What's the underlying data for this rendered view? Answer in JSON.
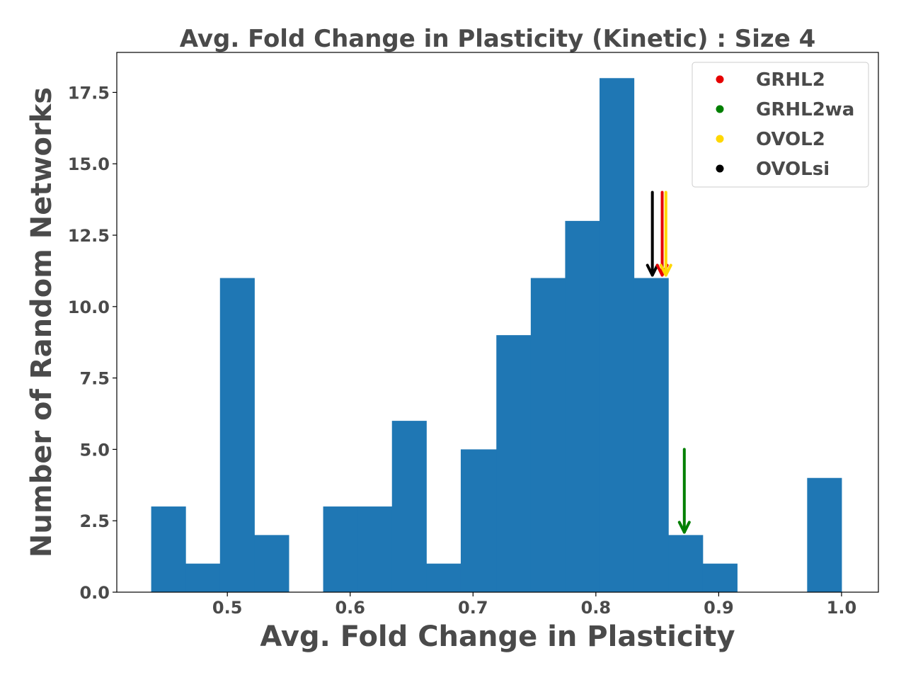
{
  "chart_data": {
    "type": "bar",
    "title": "Avg. Fold Change in Plasticity (Kinetic) : Size 4",
    "xlabel": "Avg. Fold Change in Plasticity",
    "ylabel": "Number of Random Networks",
    "xlim": [
      0.41,
      1.03
    ],
    "ylim": [
      0,
      18.9
    ],
    "grid": false,
    "bar_color": "#1f77b4",
    "bins": [
      {
        "x0": 0.438,
        "x1": 0.466,
        "count": 3
      },
      {
        "x0": 0.466,
        "x1": 0.494,
        "count": 1
      },
      {
        "x0": 0.494,
        "x1": 0.522,
        "count": 11
      },
      {
        "x0": 0.522,
        "x1": 0.55,
        "count": 2
      },
      {
        "x0": 0.55,
        "x1": 0.578,
        "count": 0
      },
      {
        "x0": 0.578,
        "x1": 0.606,
        "count": 3
      },
      {
        "x0": 0.606,
        "x1": 0.634,
        "count": 3
      },
      {
        "x0": 0.634,
        "x1": 0.662,
        "count": 6
      },
      {
        "x0": 0.662,
        "x1": 0.69,
        "count": 1
      },
      {
        "x0": 0.69,
        "x1": 0.719,
        "count": 5
      },
      {
        "x0": 0.719,
        "x1": 0.747,
        "count": 9
      },
      {
        "x0": 0.747,
        "x1": 0.775,
        "count": 11
      },
      {
        "x0": 0.775,
        "x1": 0.803,
        "count": 13
      },
      {
        "x0": 0.803,
        "x1": 0.831,
        "count": 18
      },
      {
        "x0": 0.831,
        "x1": 0.859,
        "count": 11
      },
      {
        "x0": 0.859,
        "x1": 0.887,
        "count": 2
      },
      {
        "x0": 0.887,
        "x1": 0.915,
        "count": 1
      },
      {
        "x0": 0.915,
        "x1": 0.943,
        "count": 0
      },
      {
        "x0": 0.943,
        "x1": 0.972,
        "count": 0
      },
      {
        "x0": 0.972,
        "x1": 1.0,
        "count": 4
      }
    ],
    "x_ticks": [
      "0.5",
      "0.6",
      "0.7",
      "0.8",
      "0.9",
      "1.0"
    ],
    "y_ticks": [
      "0.0",
      "2.5",
      "5.0",
      "7.5",
      "10.0",
      "12.5",
      "15.0",
      "17.5"
    ],
    "legend": {
      "placement": "top-right",
      "entries": [
        {
          "label": "GRHL2",
          "color": "#e60000"
        },
        {
          "label": "GRHL2wa",
          "color": "#007f00"
        },
        {
          "label": "OVOL2",
          "color": "#ffd700"
        },
        {
          "label": "OVOLsi",
          "color": "#000000"
        }
      ]
    },
    "arrows": [
      {
        "series": "OVOLsi",
        "x": 0.846,
        "y_from": 14.0,
        "y_to": 11.1,
        "color": "#000000"
      },
      {
        "series": "GRHL2",
        "x": 0.854,
        "y_from": 14.0,
        "y_to": 11.1,
        "color": "#e60000"
      },
      {
        "series": "OVOL2",
        "x": 0.857,
        "y_from": 14.0,
        "y_to": 11.1,
        "color": "#ffd700"
      },
      {
        "series": "GRHL2wa",
        "x": 0.872,
        "y_from": 5.0,
        "y_to": 2.1,
        "color": "#007f00"
      }
    ]
  }
}
